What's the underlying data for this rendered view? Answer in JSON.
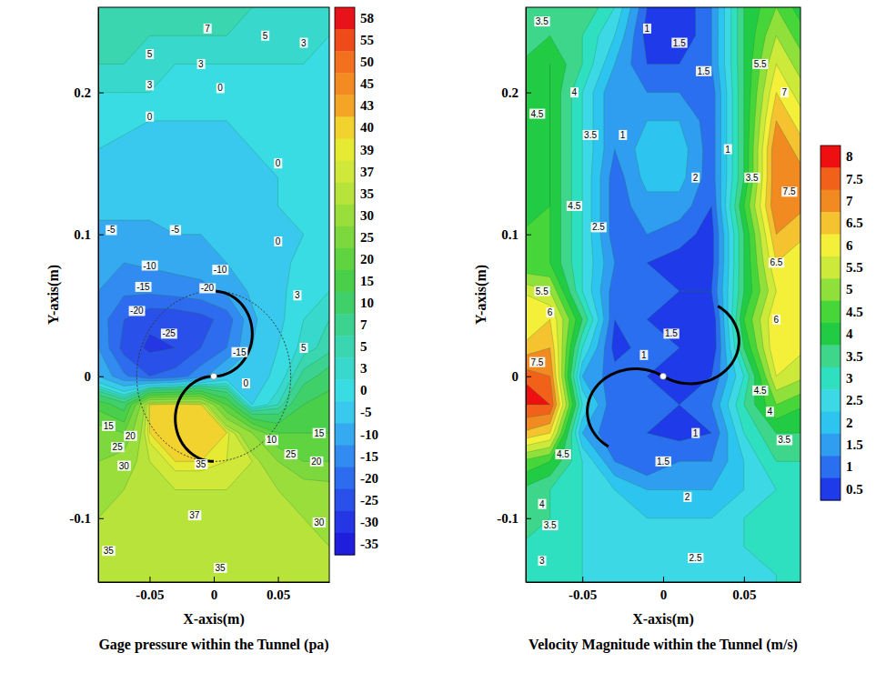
{
  "chart_data": [
    {
      "type": "contour",
      "title": "Gage pressure within the Tunnel (pa)",
      "x_label": "X-axis(m)",
      "y_label": "Y-axis(m)",
      "xlim": [
        -0.09,
        0.09
      ],
      "ylim": [
        -0.145,
        0.26
      ],
      "xticks": [
        -0.05,
        0,
        0.05
      ],
      "yticks": [
        -0.1,
        0,
        0.1,
        0.2
      ],
      "x": [
        -0.09,
        -0.07,
        -0.05,
        -0.03,
        -0.01,
        0.01,
        0.03,
        0.05,
        0.07,
        0.09
      ],
      "y": [
        0.26,
        0.24,
        0.22,
        0.2,
        0.18,
        0.16,
        0.14,
        0.12,
        0.1,
        0.08,
        0.06,
        0.04,
        0.02,
        0,
        -0.02,
        -0.04,
        -0.06,
        -0.08,
        -0.1,
        -0.12,
        -0.14
      ],
      "z": [
        [
          7,
          6,
          5,
          5,
          5,
          5,
          5,
          4,
          3,
          3
        ],
        [
          6,
          5,
          5,
          5,
          5,
          5,
          4,
          3,
          3,
          3
        ],
        [
          5,
          5,
          4,
          3,
          3,
          3,
          3,
          3,
          3,
          2
        ],
        [
          3,
          3,
          3,
          2,
          1,
          1,
          1,
          2,
          2,
          2
        ],
        [
          1,
          1,
          0,
          0,
          0,
          0,
          0,
          0,
          1,
          1
        ],
        [
          0,
          -1,
          -1,
          -1,
          -1,
          -1,
          0,
          0,
          0,
          0
        ],
        [
          -2,
          -2,
          -2,
          -2,
          -2,
          -1,
          -1,
          0,
          0,
          0
        ],
        [
          -4,
          -4,
          -4,
          -3,
          -3,
          -2,
          -1,
          0,
          0,
          1
        ],
        [
          -6,
          -6,
          -6,
          -5,
          -5,
          -3,
          -2,
          -1,
          0,
          1
        ],
        [
          -8,
          -10,
          -9,
          -8,
          -7,
          -5,
          -3,
          -1,
          1,
          2
        ],
        [
          -10,
          -14,
          -14,
          -13,
          -12,
          -9,
          -4,
          -1,
          2,
          3
        ],
        [
          -12,
          -20,
          -24,
          -24,
          -22,
          -18,
          -6,
          -1,
          3,
          5
        ],
        [
          -10,
          -22,
          -26,
          -25,
          -20,
          -15,
          -5,
          0,
          4,
          6
        ],
        [
          -5,
          -14,
          -20,
          -18,
          -12,
          -3,
          -2,
          1,
          8,
          12
        ],
        [
          18,
          12,
          40,
          41,
          40,
          20,
          0,
          5,
          15,
          18
        ],
        [
          28,
          25,
          40,
          41,
          41,
          40,
          30,
          20,
          20,
          20
        ],
        [
          30,
          33,
          37,
          40,
          40,
          39,
          37,
          30,
          25,
          25
        ],
        [
          33,
          35,
          36,
          37,
          37,
          37,
          36,
          35,
          33,
          32
        ],
        [
          35,
          35,
          36,
          36,
          36,
          36,
          36,
          35,
          35,
          34
        ],
        [
          35,
          35,
          36,
          36,
          36,
          36,
          36,
          36,
          35,
          35
        ],
        [
          35,
          35,
          36,
          36,
          36,
          35,
          35,
          35,
          35,
          35
        ]
      ],
      "levels": [
        58,
        55,
        50,
        45,
        43,
        40,
        39,
        37,
        35,
        30,
        25,
        20,
        15,
        10,
        7,
        5,
        3,
        0,
        -5,
        -10,
        -15,
        -20,
        -25,
        -30,
        -35
      ],
      "colors": [
        "#e8121a",
        "#ee4a1a",
        "#f2701e",
        "#f38b22",
        "#f4a526",
        "#f2d22e",
        "#e6ea33",
        "#cfe83a",
        "#b8e33a",
        "#9ade3c",
        "#7dd83e",
        "#5fd440",
        "#4acf4a",
        "#3fd06a",
        "#3cd391",
        "#3ad6b0",
        "#38d8cc",
        "#3adce4",
        "#39c8ee",
        "#35aaf0",
        "#318bf0",
        "#2d6cee",
        "#2a50ea",
        "#2536e4",
        "#1e1edc"
      ],
      "annotations": [
        {
          "text": "7",
          "x": -0.005,
          "y": 0.245
        },
        {
          "text": "5",
          "x": 0.04,
          "y": 0.24
        },
        {
          "text": "5",
          "x": -0.05,
          "y": 0.227
        },
        {
          "text": "3",
          "x": -0.01,
          "y": 0.22
        },
        {
          "text": "3",
          "x": 0.07,
          "y": 0.235
        },
        {
          "text": "3",
          "x": -0.05,
          "y": 0.205
        },
        {
          "text": "0",
          "x": 0.005,
          "y": 0.203
        },
        {
          "text": "0",
          "x": -0.05,
          "y": 0.183
        },
        {
          "text": "0",
          "x": 0.05,
          "y": 0.15
        },
        {
          "text": "-5",
          "x": -0.08,
          "y": 0.103
        },
        {
          "text": "-5",
          "x": -0.03,
          "y": 0.103
        },
        {
          "text": "0",
          "x": 0.05,
          "y": 0.095
        },
        {
          "text": "-10",
          "x": -0.05,
          "y": 0.078
        },
        {
          "text": "-15",
          "x": -0.055,
          "y": 0.063
        },
        {
          "text": "-20",
          "x": -0.06,
          "y": 0.046
        },
        {
          "text": "-10",
          "x": 0.005,
          "y": 0.075
        },
        {
          "text": "-20",
          "x": -0.005,
          "y": 0.062
        },
        {
          "text": "-25",
          "x": -0.035,
          "y": 0.03
        },
        {
          "text": "-15",
          "x": 0.02,
          "y": 0.017
        },
        {
          "text": "0",
          "x": 0.025,
          "y": -0.005
        },
        {
          "text": "3",
          "x": 0.065,
          "y": 0.057
        },
        {
          "text": "5",
          "x": 0.07,
          "y": 0.02
        },
        {
          "text": "10",
          "x": 0.045,
          "y": -0.045
        },
        {
          "text": "25",
          "x": 0.06,
          "y": -0.055
        },
        {
          "text": "20",
          "x": 0.08,
          "y": -0.06
        },
        {
          "text": "15",
          "x": 0.082,
          "y": -0.04
        },
        {
          "text": "35",
          "x": -0.01,
          "y": -0.062
        },
        {
          "text": "37",
          "x": -0.015,
          "y": -0.098
        },
        {
          "text": "35",
          "x": 0.005,
          "y": -0.135
        },
        {
          "text": "35",
          "x": -0.082,
          "y": -0.123
        },
        {
          "text": "30",
          "x": -0.07,
          "y": -0.063
        },
        {
          "text": "25",
          "x": -0.075,
          "y": -0.05
        },
        {
          "text": "20",
          "x": -0.065,
          "y": -0.042
        },
        {
          "text": "15",
          "x": -0.082,
          "y": -0.035
        },
        {
          "text": "30",
          "x": 0.082,
          "y": -0.103
        }
      ]
    },
    {
      "type": "contour",
      "title": "Velocity Magnitude within the Tunnel (m/s)",
      "x_label": "X-axis(m)",
      "y_label": "Y-axis(m)",
      "xlim": [
        -0.085,
        0.085
      ],
      "ylim": [
        -0.145,
        0.26
      ],
      "xticks": [
        -0.05,
        0,
        0.05
      ],
      "yticks": [
        -0.1,
        0,
        0.1,
        0.2
      ],
      "x": [
        -0.09,
        -0.07,
        -0.05,
        -0.03,
        -0.01,
        0.01,
        0.03,
        0.05,
        0.07,
        0.09
      ],
      "y": [
        0.26,
        0.24,
        0.22,
        0.2,
        0.18,
        0.16,
        0.14,
        0.12,
        0.1,
        0.08,
        0.06,
        0.04,
        0.02,
        0,
        -0.02,
        -0.04,
        -0.06,
        -0.08,
        -0.1,
        -0.12,
        -0.14
      ],
      "z": [
        [
          3.5,
          3.5,
          4,
          3,
          1,
          0.5,
          1.5,
          4,
          5,
          4
        ],
        [
          3.5,
          4,
          3.5,
          2.5,
          0.8,
          0.5,
          1.5,
          4,
          5.5,
          4.5
        ],
        [
          4,
          4.5,
          3.5,
          2,
          1,
          1,
          1.5,
          4,
          6,
          5
        ],
        [
          4,
          4.5,
          3,
          1.5,
          1.5,
          1.5,
          1.2,
          4,
          6.5,
          5.5
        ],
        [
          4,
          4.5,
          3,
          1.5,
          2,
          2,
          1.2,
          4,
          7,
          6
        ],
        [
          4,
          4.5,
          3,
          1.5,
          2.3,
          2.3,
          1.2,
          4,
          7.5,
          6.5
        ],
        [
          4,
          4.5,
          3,
          1.2,
          2.2,
          2.2,
          1.2,
          4,
          7.5,
          7
        ],
        [
          4,
          4.5,
          3,
          1.2,
          1.8,
          1.8,
          1,
          4.5,
          7.5,
          7
        ],
        [
          4.5,
          4.5,
          3,
          1.2,
          1.5,
          1.2,
          0.8,
          4,
          7,
          6.5
        ],
        [
          4.5,
          4.5,
          3,
          1.5,
          1,
          0.8,
          0.8,
          4,
          6.5,
          6
        ],
        [
          6,
          5.5,
          3,
          1.2,
          1,
          1,
          1,
          4,
          6,
          6
        ],
        [
          6,
          6.5,
          4,
          1,
          1,
          0.8,
          0.5,
          4.5,
          6.5,
          6
        ],
        [
          6.5,
          7,
          3,
          0.8,
          1.2,
          1,
          0.5,
          4,
          6.5,
          6
        ],
        [
          8,
          7.5,
          2,
          1.2,
          1,
          0.5,
          1,
          3,
          6,
          5.5
        ],
        [
          8,
          8,
          3,
          1,
          1.2,
          1,
          1.5,
          3.5,
          5,
          4.5
        ],
        [
          7,
          6.5,
          2,
          1,
          1,
          0.8,
          1,
          3,
          4,
          4
        ],
        [
          5,
          4.5,
          3,
          1.5,
          1,
          1.5,
          1.5,
          2.5,
          3.5,
          3.5
        ],
        [
          4,
          3.5,
          3,
          2.5,
          2,
          2,
          2,
          2.5,
          3,
          3
        ],
        [
          3.5,
          3.5,
          3,
          2.5,
          2.5,
          2.5,
          2.5,
          3,
          3,
          3
        ],
        [
          3.5,
          3,
          3,
          2.5,
          2.5,
          2.5,
          2.5,
          3,
          3,
          3
        ],
        [
          3,
          3,
          3,
          2.5,
          2.5,
          2.5,
          2.5,
          2.5,
          3,
          3
        ]
      ],
      "levels": [
        8,
        7.5,
        7,
        6.5,
        6,
        5.5,
        5,
        4.5,
        4,
        3.5,
        3,
        2.5,
        2,
        1.5,
        1,
        0.5
      ],
      "colors": [
        "#ee1010",
        "#f2611a",
        "#f08a21",
        "#f5c330",
        "#f4f03a",
        "#cdea3a",
        "#8fe03a",
        "#47d63a",
        "#21cc44",
        "#3dd68a",
        "#2ee0c0",
        "#3cd8e6",
        "#2ec4f0",
        "#2f9ef0",
        "#2a6ff0",
        "#1f3ae8"
      ],
      "annotations": [
        {
          "text": "3.5",
          "x": -0.075,
          "y": 0.25
        },
        {
          "text": "4",
          "x": -0.055,
          "y": 0.2
        },
        {
          "text": "4.5",
          "x": -0.078,
          "y": 0.185
        },
        {
          "text": "3.5",
          "x": -0.045,
          "y": 0.17
        },
        {
          "text": "4.5",
          "x": -0.055,
          "y": 0.12
        },
        {
          "text": "2.5",
          "x": -0.04,
          "y": 0.105
        },
        {
          "text": "1.5",
          "x": 0.01,
          "y": 0.235
        },
        {
          "text": "1",
          "x": -0.01,
          "y": 0.245
        },
        {
          "text": "1.5",
          "x": 0.025,
          "y": 0.215
        },
        {
          "text": "2",
          "x": 0.02,
          "y": 0.14
        },
        {
          "text": "1",
          "x": -0.025,
          "y": 0.17
        },
        {
          "text": "1",
          "x": 0.04,
          "y": 0.16
        },
        {
          "text": "3.5",
          "x": 0.055,
          "y": 0.14
        },
        {
          "text": "5.5",
          "x": 0.06,
          "y": 0.22
        },
        {
          "text": "7",
          "x": 0.075,
          "y": 0.2
        },
        {
          "text": "7.5",
          "x": 0.078,
          "y": 0.13
        },
        {
          "text": "6.5",
          "x": 0.07,
          "y": 0.08
        },
        {
          "text": "6",
          "x": 0.07,
          "y": 0.04
        },
        {
          "text": "5.5",
          "x": -0.075,
          "y": 0.06
        },
        {
          "text": "6",
          "x": -0.07,
          "y": 0.045
        },
        {
          "text": "7.5",
          "x": -0.078,
          "y": 0.01
        },
        {
          "text": "4.5",
          "x": 0.06,
          "y": -0.01
        },
        {
          "text": "4",
          "x": 0.066,
          "y": -0.025
        },
        {
          "text": "3.5",
          "x": 0.075,
          "y": -0.045
        },
        {
          "text": "1",
          "x": 0.02,
          "y": -0.04
        },
        {
          "text": "1.5",
          "x": 0,
          "y": -0.06
        },
        {
          "text": "2",
          "x": 0.015,
          "y": -0.085
        },
        {
          "text": "2.5",
          "x": 0.02,
          "y": -0.128
        },
        {
          "text": "3",
          "x": -0.075,
          "y": -0.13
        },
        {
          "text": "3.5",
          "x": -0.07,
          "y": -0.105
        },
        {
          "text": "4",
          "x": -0.075,
          "y": -0.09
        },
        {
          "text": "4.5",
          "x": -0.062,
          "y": -0.055
        },
        {
          "text": "1",
          "x": -0.012,
          "y": 0.015
        },
        {
          "text": "1.5",
          "x": 0.005,
          "y": 0.03
        }
      ]
    }
  ]
}
